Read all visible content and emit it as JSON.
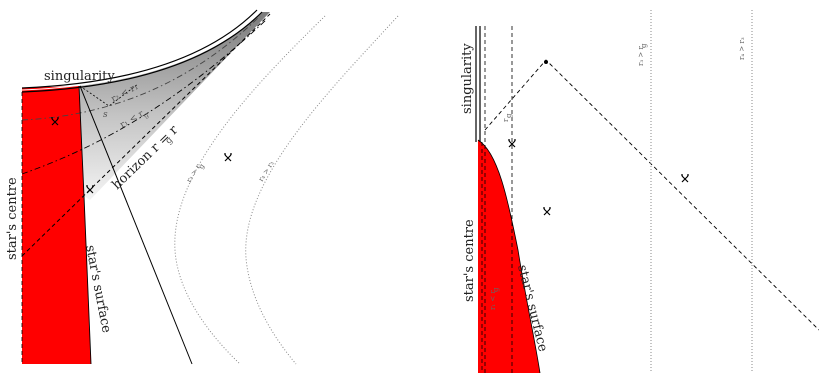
{
  "left_panel": {
    "singularity": "singularity",
    "star_centre": "star's centre",
    "star_surface": "star's surface",
    "horizon": "horizon r = r",
    "horizon_sub": "g",
    "s_label": "s",
    "r2_lt_r1": "r₂ < r₁",
    "r1_lt_rg": "r₁ < r",
    "r1_lt_rg_sub": "g",
    "r3_gt_rg": "r₃ > r",
    "r3_gt_rg_sub": "g",
    "r4_gt_r3": "r₄ > r₃"
  },
  "right_panel": {
    "singularity": "singularity",
    "star_centre": "star's centre",
    "star_surface": "star's surface",
    "rg_top": "r",
    "rg_top_sub": "g",
    "r1_lt_rg": "r₁ < r",
    "r1_lt_rg_sub": "g",
    "r3_gt_rg": "r₃ > r",
    "r3_gt_rg_sub": "g",
    "r4_gt_r3": "r₄ > r₃"
  },
  "colors": {
    "star": "#ff0000",
    "trapped_dark": "#808080",
    "trapped_light": "#f2f2f2",
    "line": "#000000",
    "dotted": "#888888"
  },
  "icons": [
    "observer-cross-icon"
  ]
}
